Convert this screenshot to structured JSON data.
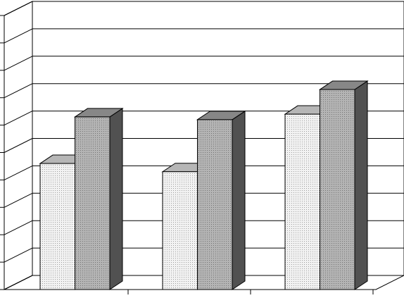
{
  "chart_data": {
    "type": "bar3d",
    "categories": [
      null,
      null,
      null
    ],
    "series": [
      {
        "color": "#f2f2f2",
        "values": [
          4.6,
          4.3,
          6.4
        ]
      },
      {
        "color": "#b4b4b4",
        "values": [
          6.3,
          6.2,
          7.3
        ]
      }
    ],
    "ylim": [
      0,
      10
    ],
    "yticks": [
      0,
      1,
      2,
      3,
      4,
      5,
      6,
      7,
      8,
      9,
      10
    ],
    "grid": true
  }
}
